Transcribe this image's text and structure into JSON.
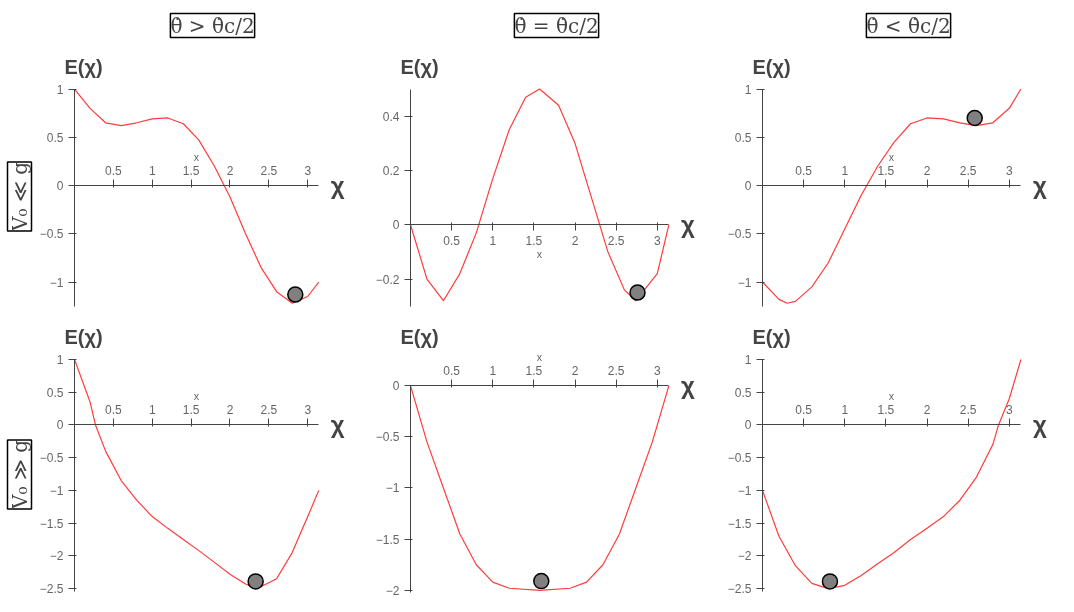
{
  "chart_data": [
    {
      "type": "line",
      "title": "θ̇ > θ̇c/2",
      "subtitle": "V₀ ≪ g",
      "xlabel": "χ",
      "ylabel": "E(χ)",
      "annotations": [
        "x"
      ],
      "xlim": [
        0,
        3.1416
      ],
      "xticks": [
        0.5,
        1,
        1.5,
        2,
        2.5,
        3
      ],
      "ylim": [
        -1.25,
        1
      ],
      "yticks": [
        -1,
        -0.5,
        0,
        0.5,
        1
      ],
      "series": [
        {
          "color": "#ff3b3b",
          "x": [
            0,
            0.2,
            0.4,
            0.6,
            0.8,
            1.0,
            1.2,
            1.4,
            1.6,
            1.8,
            2.0,
            2.2,
            2.4,
            2.6,
            2.8,
            3.0,
            3.1416
          ],
          "values": [
            1,
            0.8,
            0.65,
            0.62,
            0.65,
            0.69,
            0.7,
            0.64,
            0.47,
            0.2,
            -0.12,
            -0.5,
            -0.85,
            -1.1,
            -1.22,
            -1.15,
            -1.0
          ]
        },
        {
          "type": "scatter",
          "marker": "circle",
          "color": "#808080",
          "x": [
            2.84
          ],
          "values": [
            -1.13
          ]
        }
      ]
    },
    {
      "type": "line",
      "title": "θ̇ = θ̇c/2",
      "xlabel": "χ",
      "ylabel": "E(χ)",
      "annotations": [
        "x"
      ],
      "xlim": [
        0,
        3.1416
      ],
      "xticks": [
        0.5,
        1,
        1.5,
        2,
        2.5,
        3
      ],
      "ylim": [
        -0.3,
        0.5
      ],
      "yticks": [
        -0.2,
        0,
        0.2,
        0.4
      ],
      "series": [
        {
          "color": "#ff3b3b",
          "x": [
            0,
            0.2,
            0.4,
            0.6,
            0.8,
            1.0,
            1.2,
            1.4,
            1.57,
            1.8,
            2.0,
            2.2,
            2.4,
            2.6,
            2.74,
            3.0,
            3.1416
          ],
          "values": [
            0,
            -0.2,
            -0.28,
            -0.18,
            -0.03,
            0.17,
            0.35,
            0.47,
            0.5,
            0.44,
            0.3,
            0.1,
            -0.1,
            -0.24,
            -0.28,
            -0.18,
            0
          ]
        },
        {
          "type": "scatter",
          "marker": "circle",
          "color": "#808080",
          "x": [
            2.76
          ],
          "values": [
            -0.25
          ]
        }
      ]
    },
    {
      "type": "line",
      "title": "θ̇ < θ̇c/2",
      "xlabel": "χ",
      "ylabel": "E(χ)",
      "annotations": [
        "x"
      ],
      "xlim": [
        0,
        3.1416
      ],
      "xticks": [
        0.5,
        1,
        1.5,
        2,
        2.5,
        3
      ],
      "ylim": [
        -1.25,
        1
      ],
      "yticks": [
        -1,
        -0.5,
        0,
        0.5,
        1
      ],
      "series": [
        {
          "color": "#ff3b3b",
          "x": [
            0,
            0.2,
            0.3,
            0.4,
            0.6,
            0.8,
            1.0,
            1.2,
            1.4,
            1.6,
            1.8,
            2.0,
            2.2,
            2.4,
            2.6,
            2.8,
            3.0,
            3.1416
          ],
          "values": [
            -1,
            -1.18,
            -1.22,
            -1.2,
            -1.05,
            -0.8,
            -0.45,
            -0.1,
            0.2,
            0.45,
            0.64,
            0.7,
            0.69,
            0.65,
            0.62,
            0.65,
            0.8,
            1.0
          ]
        },
        {
          "type": "scatter",
          "marker": "circle",
          "color": "#808080",
          "x": [
            2.58
          ],
          "values": [
            0.7
          ]
        }
      ]
    },
    {
      "type": "line",
      "subtitle": "V₀ ≫ g",
      "xlabel": "χ",
      "ylabel": "E(χ)",
      "annotations": [
        "x"
      ],
      "xlim": [
        0,
        3.1416
      ],
      "xticks": [
        0.5,
        1,
        1.5,
        2,
        2.5,
        3
      ],
      "ylim": [
        -2.55,
        1
      ],
      "yticks": [
        -2.5,
        -2,
        -1.5,
        -1,
        -0.5,
        0,
        0.5,
        1
      ],
      "series": [
        {
          "color": "#ff3b3b",
          "x": [
            0,
            0.2,
            0.27,
            0.4,
            0.6,
            0.8,
            1.0,
            1.2,
            1.4,
            1.6,
            1.8,
            2.0,
            2.2,
            2.35,
            2.6,
            2.8,
            3.0,
            3.1416
          ],
          "values": [
            1,
            0.35,
            0,
            -0.4,
            -0.85,
            -1.15,
            -1.4,
            -1.58,
            -1.75,
            -1.92,
            -2.1,
            -2.28,
            -2.43,
            -2.5,
            -2.35,
            -1.95,
            -1.4,
            -1.0
          ]
        },
        {
          "type": "scatter",
          "marker": "circle",
          "color": "#808080",
          "x": [
            2.33
          ],
          "values": [
            -2.39
          ]
        }
      ]
    },
    {
      "type": "line",
      "xlabel": "χ",
      "ylabel": "E(χ)",
      "annotations": [
        "x"
      ],
      "xlim": [
        0,
        3.1416
      ],
      "xticks": [
        0.5,
        1,
        1.5,
        2,
        2.5,
        3
      ],
      "ylim": [
        -2.02,
        0
      ],
      "yticks": [
        -2,
        -1.5,
        -1,
        -0.5,
        0
      ],
      "series": [
        {
          "color": "#ff3b3b",
          "x": [
            0,
            0.2,
            0.4,
            0.6,
            0.8,
            1.0,
            1.2,
            1.57,
            1.94,
            2.14,
            2.34,
            2.54,
            2.74,
            2.94,
            3.1416
          ],
          "values": [
            0,
            -0.55,
            -1.0,
            -1.45,
            -1.75,
            -1.92,
            -1.98,
            -2.0,
            -1.98,
            -1.92,
            -1.75,
            -1.45,
            -1.0,
            -0.55,
            0
          ]
        },
        {
          "type": "scatter",
          "marker": "circle",
          "color": "#808080",
          "x": [
            1.59
          ],
          "values": [
            -1.91
          ]
        }
      ]
    },
    {
      "type": "line",
      "xlabel": "χ",
      "ylabel": "E(χ)",
      "annotations": [
        "x"
      ],
      "xlim": [
        0,
        3.1416
      ],
      "xticks": [
        0.5,
        1,
        1.5,
        2,
        2.5,
        3
      ],
      "ylim": [
        -2.55,
        1
      ],
      "yticks": [
        -2.5,
        -2,
        -1.5,
        -1,
        -0.5,
        0,
        0.5,
        1
      ],
      "series": [
        {
          "color": "#ff3b3b",
          "x": [
            0,
            0.2,
            0.4,
            0.6,
            0.8,
            1.0,
            1.2,
            1.4,
            1.6,
            1.8,
            2.0,
            2.2,
            2.4,
            2.6,
            2.8,
            2.87,
            3.0,
            3.1416
          ],
          "values": [
            -1,
            -1.7,
            -2.15,
            -2.42,
            -2.5,
            -2.45,
            -2.3,
            -2.12,
            -1.95,
            -1.75,
            -1.58,
            -1.4,
            -1.15,
            -0.8,
            -0.3,
            0,
            0.4,
            1.0
          ]
        },
        {
          "type": "scatter",
          "marker": "circle",
          "color": "#808080",
          "x": [
            0.82
          ],
          "values": [
            -2.39
          ]
        }
      ]
    }
  ]
}
